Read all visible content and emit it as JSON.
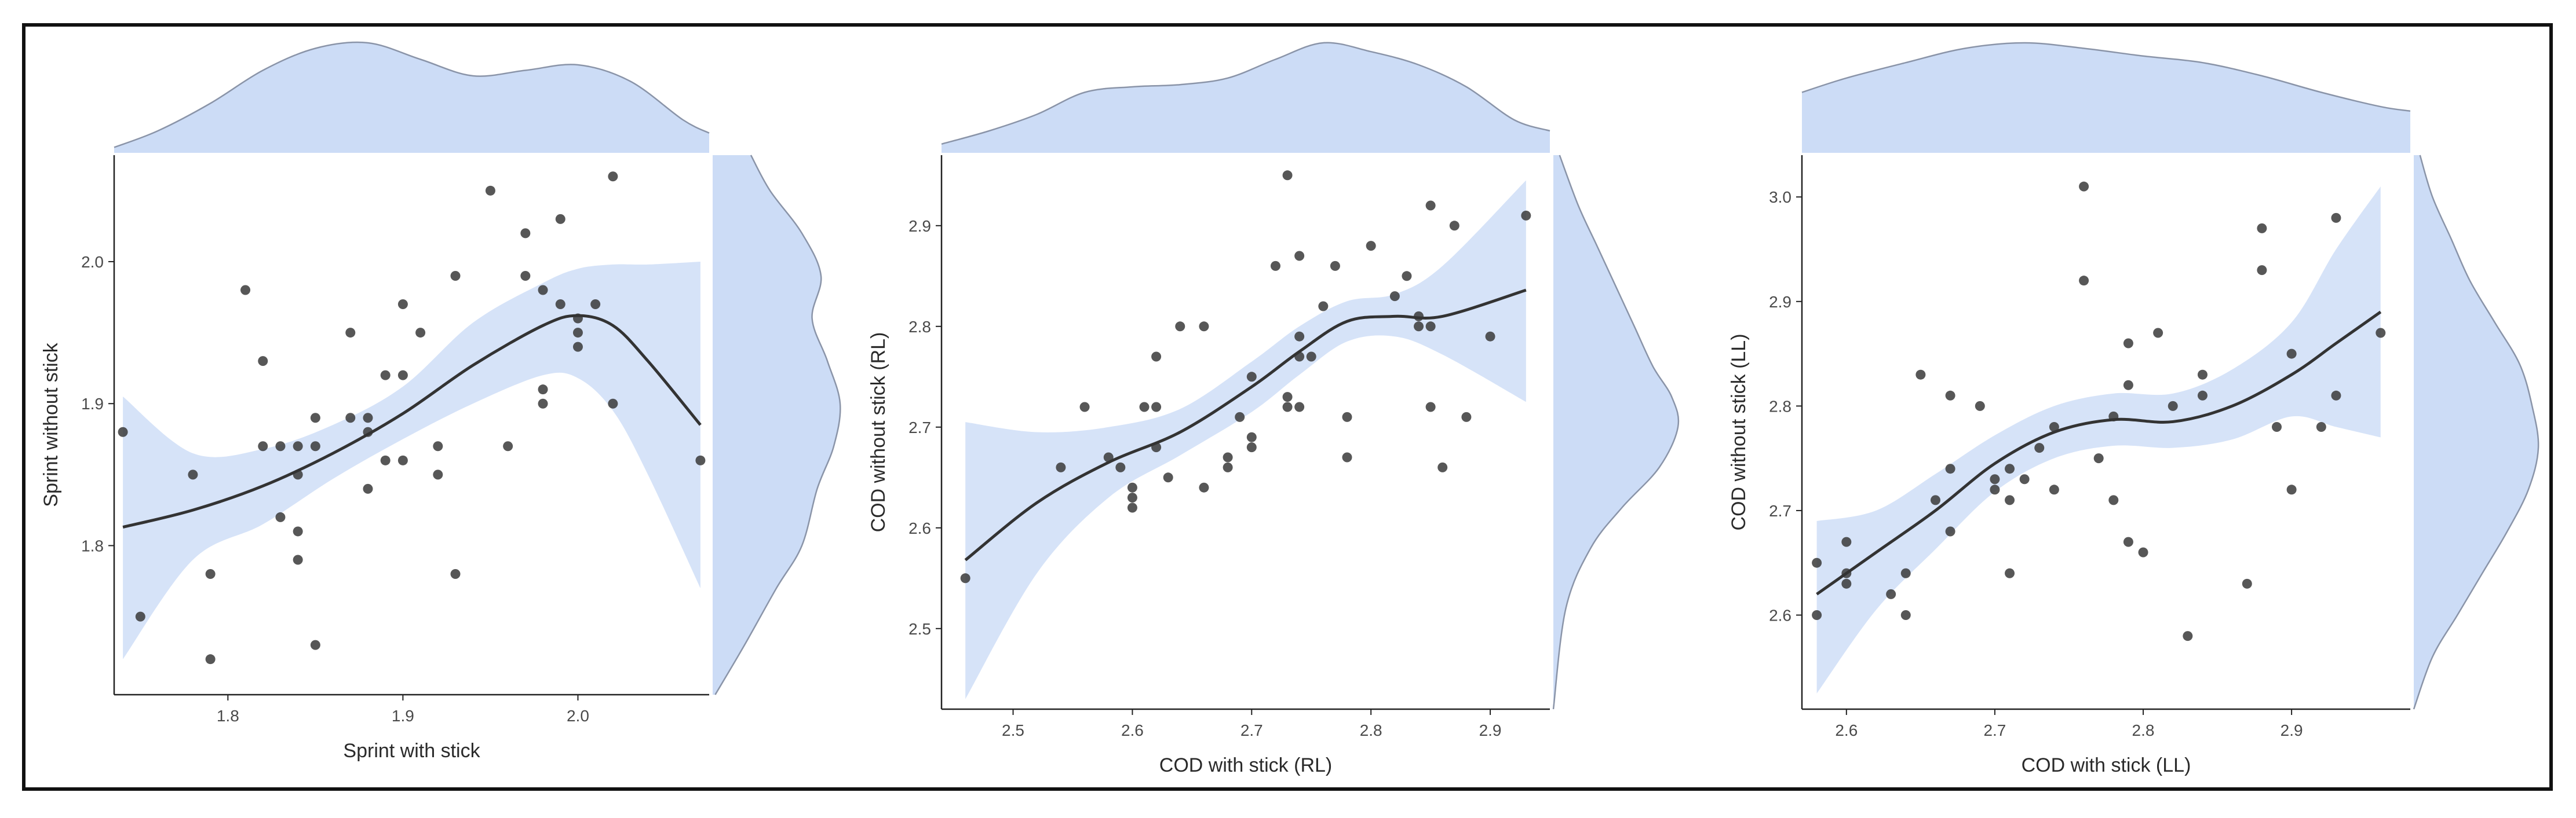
{
  "colors": {
    "band_fill": "#d6e3f8",
    "density_fill": "#ccdcf6",
    "density_stroke": "#8a94a8",
    "smooth_line": "#333333",
    "point": "#3a3a3a",
    "axis": "#222222",
    "frame": "#111111"
  },
  "chart_data": [
    {
      "type": "scatter",
      "title": "",
      "xlabel": "Sprint with stick",
      "ylabel": "Sprint without stick",
      "xlim": [
        1.735,
        2.075
      ],
      "ylim": [
        1.695,
        2.075
      ],
      "xticks": [
        1.8,
        1.9,
        2.0
      ],
      "yticks": [
        1.8,
        1.9,
        2.0
      ],
      "xtick_labels": [
        "1.8",
        "1.9",
        "2.0"
      ],
      "ytick_labels": [
        "1.8",
        "1.9",
        "2.0"
      ],
      "points": [
        [
          1.74,
          1.88
        ],
        [
          1.75,
          1.75
        ],
        [
          1.78,
          1.85
        ],
        [
          1.79,
          1.78
        ],
        [
          1.79,
          1.72
        ],
        [
          1.81,
          1.98
        ],
        [
          1.82,
          1.93
        ],
        [
          1.82,
          1.87
        ],
        [
          1.83,
          1.87
        ],
        [
          1.83,
          1.82
        ],
        [
          1.84,
          1.87
        ],
        [
          1.84,
          1.85
        ],
        [
          1.84,
          1.81
        ],
        [
          1.84,
          1.79
        ],
        [
          1.85,
          1.89
        ],
        [
          1.85,
          1.87
        ],
        [
          1.85,
          1.73
        ],
        [
          1.87,
          1.95
        ],
        [
          1.87,
          1.89
        ],
        [
          1.88,
          1.89
        ],
        [
          1.88,
          1.88
        ],
        [
          1.88,
          1.84
        ],
        [
          1.89,
          1.92
        ],
        [
          1.89,
          1.86
        ],
        [
          1.9,
          1.97
        ],
        [
          1.9,
          1.92
        ],
        [
          1.9,
          1.86
        ],
        [
          1.91,
          1.95
        ],
        [
          1.92,
          1.87
        ],
        [
          1.92,
          1.85
        ],
        [
          1.93,
          1.99
        ],
        [
          1.93,
          1.78
        ],
        [
          1.95,
          2.05
        ],
        [
          1.96,
          1.87
        ],
        [
          1.97,
          2.02
        ],
        [
          1.97,
          1.99
        ],
        [
          1.98,
          1.98
        ],
        [
          1.98,
          1.91
        ],
        [
          1.98,
          1.9
        ],
        [
          1.99,
          2.03
        ],
        [
          1.99,
          1.97
        ],
        [
          2.0,
          1.96
        ],
        [
          2.0,
          1.95
        ],
        [
          2.0,
          1.94
        ],
        [
          2.01,
          1.97
        ],
        [
          2.02,
          2.06
        ],
        [
          2.02,
          1.9
        ],
        [
          2.07,
          1.86
        ]
      ],
      "smooth": {
        "x": [
          1.74,
          1.78,
          1.82,
          1.86,
          1.9,
          1.94,
          1.98,
          2.0,
          2.02,
          2.04,
          2.07
        ],
        "y": [
          1.813,
          1.825,
          1.842,
          1.865,
          1.893,
          1.927,
          1.955,
          1.962,
          1.955,
          1.93,
          1.885
        ],
        "lower": [
          1.72,
          1.79,
          1.815,
          1.847,
          1.875,
          1.9,
          1.92,
          1.918,
          1.895,
          1.85,
          1.77
        ],
        "upper": [
          1.905,
          1.865,
          1.868,
          1.885,
          1.912,
          1.957,
          1.985,
          1.995,
          1.998,
          1.998,
          2.0
        ]
      },
      "x_density": {
        "x": [
          1.735,
          1.76,
          1.79,
          1.82,
          1.85,
          1.88,
          1.91,
          1.94,
          1.97,
          2.0,
          2.03,
          2.06,
          2.075
        ],
        "d": [
          0.05,
          0.2,
          0.45,
          0.75,
          0.95,
          1.0,
          0.85,
          0.7,
          0.75,
          0.8,
          0.65,
          0.3,
          0.18
        ]
      },
      "y_density": {
        "y": [
          1.695,
          1.73,
          1.77,
          1.8,
          1.84,
          1.87,
          1.9,
          1.93,
          1.96,
          1.99,
          2.02,
          2.05,
          2.075
        ],
        "d": [
          0.02,
          0.25,
          0.5,
          0.7,
          0.82,
          0.95,
          1.0,
          0.9,
          0.78,
          0.85,
          0.7,
          0.45,
          0.3
        ]
      }
    },
    {
      "type": "scatter",
      "title": "",
      "xlabel": "COD with stick (RL)",
      "ylabel": "COD without stick (RL)",
      "xlim": [
        2.44,
        2.95
      ],
      "ylim": [
        2.42,
        2.97
      ],
      "xticks": [
        2.5,
        2.6,
        2.7,
        2.8,
        2.9
      ],
      "yticks": [
        2.5,
        2.6,
        2.7,
        2.8,
        2.9
      ],
      "xtick_labels": [
        "2.5",
        "2.6",
        "2.7",
        "2.8",
        "2.9"
      ],
      "ytick_labels": [
        "2.5",
        "2.6",
        "2.7",
        "2.8",
        "2.9"
      ],
      "points": [
        [
          2.46,
          2.55
        ],
        [
          2.54,
          2.66
        ],
        [
          2.56,
          2.72
        ],
        [
          2.58,
          2.67
        ],
        [
          2.59,
          2.66
        ],
        [
          2.6,
          2.64
        ],
        [
          2.6,
          2.63
        ],
        [
          2.6,
          2.62
        ],
        [
          2.61,
          2.72
        ],
        [
          2.62,
          2.77
        ],
        [
          2.62,
          2.72
        ],
        [
          2.62,
          2.68
        ],
        [
          2.63,
          2.65
        ],
        [
          2.64,
          2.8
        ],
        [
          2.66,
          2.8
        ],
        [
          2.66,
          2.64
        ],
        [
          2.68,
          2.67
        ],
        [
          2.68,
          2.66
        ],
        [
          2.69,
          2.71
        ],
        [
          2.7,
          2.75
        ],
        [
          2.7,
          2.69
        ],
        [
          2.7,
          2.68
        ],
        [
          2.72,
          2.86
        ],
        [
          2.73,
          2.95
        ],
        [
          2.73,
          2.73
        ],
        [
          2.73,
          2.72
        ],
        [
          2.74,
          2.87
        ],
        [
          2.74,
          2.79
        ],
        [
          2.74,
          2.77
        ],
        [
          2.74,
          2.72
        ],
        [
          2.75,
          2.77
        ],
        [
          2.76,
          2.82
        ],
        [
          2.77,
          2.86
        ],
        [
          2.78,
          2.71
        ],
        [
          2.78,
          2.67
        ],
        [
          2.8,
          2.88
        ],
        [
          2.82,
          2.83
        ],
        [
          2.83,
          2.85
        ],
        [
          2.84,
          2.81
        ],
        [
          2.84,
          2.8
        ],
        [
          2.85,
          2.92
        ],
        [
          2.85,
          2.8
        ],
        [
          2.85,
          2.72
        ],
        [
          2.86,
          2.66
        ],
        [
          2.87,
          2.9
        ],
        [
          2.88,
          2.71
        ],
        [
          2.9,
          2.79
        ],
        [
          2.93,
          2.91
        ]
      ],
      "smooth": {
        "x": [
          2.46,
          2.52,
          2.58,
          2.64,
          2.7,
          2.74,
          2.78,
          2.82,
          2.86,
          2.93
        ],
        "y": [
          2.568,
          2.625,
          2.665,
          2.695,
          2.74,
          2.775,
          2.805,
          2.81,
          2.81,
          2.836
        ],
        "lower": [
          2.43,
          2.555,
          2.63,
          2.672,
          2.715,
          2.752,
          2.785,
          2.79,
          2.772,
          2.725
        ],
        "upper": [
          2.705,
          2.695,
          2.7,
          2.718,
          2.765,
          2.8,
          2.825,
          2.832,
          2.86,
          2.945
        ]
      },
      "x_density": {
        "x": [
          2.44,
          2.48,
          2.52,
          2.56,
          2.6,
          2.64,
          2.68,
          2.72,
          2.76,
          2.8,
          2.84,
          2.88,
          2.92,
          2.95
        ],
        "d": [
          0.08,
          0.2,
          0.35,
          0.55,
          0.6,
          0.62,
          0.68,
          0.85,
          1.0,
          0.92,
          0.8,
          0.6,
          0.3,
          0.2
        ]
      },
      "y_density": {
        "y": [
          2.42,
          2.52,
          2.58,
          2.62,
          2.66,
          2.7,
          2.73,
          2.76,
          2.8,
          2.84,
          2.88,
          2.92,
          2.97
        ],
        "d": [
          0.0,
          0.1,
          0.3,
          0.55,
          0.85,
          1.0,
          0.95,
          0.8,
          0.65,
          0.5,
          0.35,
          0.2,
          0.05
        ]
      }
    },
    {
      "type": "scatter",
      "title": "",
      "xlabel": "COD with stick (LL)",
      "ylabel": "COD without stick (LL)",
      "xlim": [
        2.57,
        2.98
      ],
      "ylim": [
        2.51,
        3.04
      ],
      "xticks": [
        2.6,
        2.7,
        2.8,
        2.9
      ],
      "yticks": [
        2.6,
        2.7,
        2.8,
        2.9,
        3.0
      ],
      "xtick_labels": [
        "2.6",
        "2.7",
        "2.8",
        "2.9"
      ],
      "ytick_labels": [
        "2.6",
        "2.7",
        "2.8",
        "2.9",
        "3.0"
      ],
      "points": [
        [
          2.58,
          2.65
        ],
        [
          2.58,
          2.6
        ],
        [
          2.6,
          2.67
        ],
        [
          2.6,
          2.64
        ],
        [
          2.6,
          2.63
        ],
        [
          2.63,
          2.62
        ],
        [
          2.64,
          2.64
        ],
        [
          2.64,
          2.6
        ],
        [
          2.65,
          2.83
        ],
        [
          2.66,
          2.71
        ],
        [
          2.67,
          2.81
        ],
        [
          2.67,
          2.74
        ],
        [
          2.67,
          2.68
        ],
        [
          2.69,
          2.8
        ],
        [
          2.7,
          2.73
        ],
        [
          2.7,
          2.72
        ],
        [
          2.71,
          2.74
        ],
        [
          2.71,
          2.71
        ],
        [
          2.71,
          2.64
        ],
        [
          2.72,
          2.73
        ],
        [
          2.73,
          2.76
        ],
        [
          2.74,
          2.78
        ],
        [
          2.74,
          2.72
        ],
        [
          2.76,
          3.01
        ],
        [
          2.76,
          2.92
        ],
        [
          2.77,
          2.75
        ],
        [
          2.78,
          2.79
        ],
        [
          2.78,
          2.71
        ],
        [
          2.79,
          2.86
        ],
        [
          2.79,
          2.82
        ],
        [
          2.79,
          2.67
        ],
        [
          2.8,
          2.66
        ],
        [
          2.81,
          2.87
        ],
        [
          2.82,
          2.8
        ],
        [
          2.83,
          2.58
        ],
        [
          2.84,
          2.83
        ],
        [
          2.84,
          2.81
        ],
        [
          2.87,
          2.63
        ],
        [
          2.88,
          2.97
        ],
        [
          2.88,
          2.93
        ],
        [
          2.89,
          2.78
        ],
        [
          2.9,
          2.85
        ],
        [
          2.9,
          2.72
        ],
        [
          2.92,
          2.78
        ],
        [
          2.93,
          2.98
        ],
        [
          2.93,
          2.81
        ],
        [
          2.96,
          2.87
        ]
      ],
      "smooth": {
        "x": [
          2.58,
          2.62,
          2.66,
          2.7,
          2.74,
          2.78,
          2.82,
          2.86,
          2.9,
          2.93,
          2.96
        ],
        "y": [
          2.62,
          2.66,
          2.7,
          2.745,
          2.775,
          2.787,
          2.785,
          2.8,
          2.83,
          2.86,
          2.89
        ],
        "lower": [
          2.525,
          2.605,
          2.663,
          2.718,
          2.75,
          2.762,
          2.76,
          2.768,
          2.79,
          2.78,
          2.77
        ],
        "upper": [
          2.69,
          2.7,
          2.735,
          2.772,
          2.8,
          2.812,
          2.812,
          2.835,
          2.88,
          2.95,
          3.01
        ]
      },
      "x_density": {
        "x": [
          2.57,
          2.6,
          2.64,
          2.68,
          2.72,
          2.76,
          2.8,
          2.84,
          2.88,
          2.92,
          2.96,
          2.98
        ],
        "d": [
          0.55,
          0.68,
          0.82,
          0.95,
          1.0,
          0.95,
          0.88,
          0.82,
          0.7,
          0.55,
          0.42,
          0.38
        ]
      },
      "y_density": {
        "y": [
          2.51,
          2.56,
          2.6,
          2.64,
          2.68,
          2.72,
          2.76,
          2.8,
          2.84,
          2.88,
          2.92,
          2.96,
          3.0,
          3.04
        ],
        "d": [
          0.0,
          0.15,
          0.35,
          0.55,
          0.75,
          0.92,
          1.0,
          0.95,
          0.85,
          0.65,
          0.45,
          0.3,
          0.15,
          0.05
        ]
      }
    }
  ]
}
